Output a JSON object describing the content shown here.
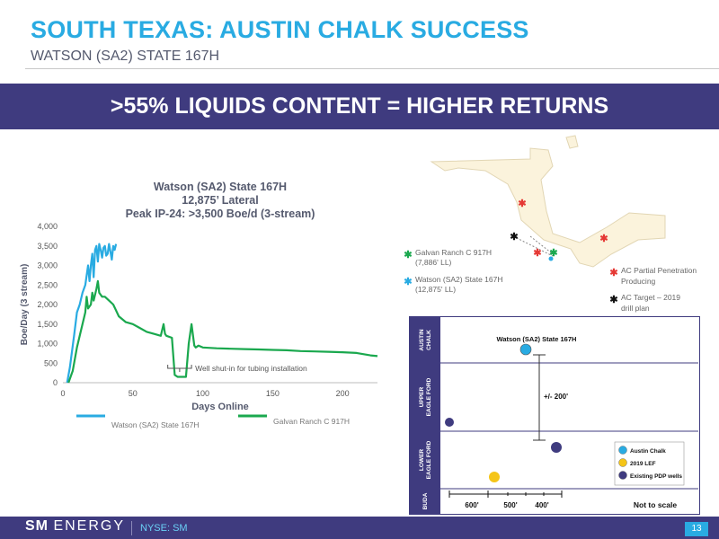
{
  "header": {
    "title": "SOUTH TEXAS: AUSTIN CHALK SUCCESS",
    "subtitle": "WATSON (SA2) STATE 167H"
  },
  "banner": {
    "text": ">55% LIQUIDS CONTENT = HIGHER RETURNS"
  },
  "chart_data": [
    {
      "type": "line",
      "title": [
        "Watson (SA2) State 167H",
        "12,875’ Lateral",
        "Peak IP-24: >3,500 Boe/d  (3-stream)"
      ],
      "xlabel": "Days Online",
      "ylabel": "Boe/Day (3 stream)",
      "xlim": [
        0,
        225
      ],
      "ylim": [
        0,
        4000
      ],
      "xticks": [
        0,
        50,
        100,
        150,
        200
      ],
      "yticks": [
        "0",
        "500",
        "1,000",
        "1,500",
        "2,000",
        "2,500",
        "3,000",
        "3,500",
        "4,000"
      ],
      "grid": false,
      "legend": "bottom",
      "series": [
        {
          "name": "Watson (SA2) State 167H",
          "color": "#29abe2",
          "x": [
            3,
            5,
            8,
            10,
            12,
            14,
            16,
            18,
            19,
            20,
            21,
            22,
            23,
            24,
            25,
            26,
            27,
            28,
            29,
            30,
            31,
            32,
            33,
            34,
            35,
            36,
            37,
            38
          ],
          "y": [
            0,
            400,
            1200,
            1800,
            2000,
            2300,
            2500,
            3000,
            2600,
            3000,
            3300,
            2700,
            3400,
            3500,
            3100,
            3550,
            3400,
            3200,
            3450,
            3500,
            3250,
            3300,
            3550,
            3350,
            3150,
            3500,
            3400,
            3550
          ]
        },
        {
          "name": "Galvan Ranch C 917H",
          "color": "#1aa84e",
          "x": [
            4,
            7,
            10,
            12,
            14,
            16,
            17,
            18,
            20,
            21,
            22,
            24,
            25,
            26,
            28,
            30,
            33,
            36,
            40,
            45,
            50,
            55,
            60,
            65,
            70,
            72,
            73,
            74,
            78,
            80,
            82,
            84,
            88,
            90,
            92,
            94,
            95,
            97,
            100,
            110,
            120,
            130,
            140,
            150,
            160,
            170,
            180,
            190,
            200,
            210,
            220,
            225
          ],
          "y": [
            0,
            300,
            900,
            1200,
            1500,
            1800,
            2200,
            1900,
            2000,
            2300,
            2100,
            2400,
            2600,
            2300,
            2200,
            2200,
            2100,
            2000,
            1700,
            1550,
            1500,
            1400,
            1300,
            1250,
            1200,
            1500,
            1250,
            1200,
            1150,
            200,
            150,
            150,
            150,
            1000,
            1500,
            950,
            900,
            950,
            900,
            880,
            870,
            860,
            850,
            840,
            830,
            810,
            800,
            790,
            780,
            760,
            700,
            680
          ]
        }
      ],
      "annotation": "Well shut-in for tubing installation"
    },
    {
      "type": "scatter",
      "zones": [
        "AUSTIN CHALK",
        "UPPER EAGLE FORD",
        "LOWER EAGLE FORD",
        "BUDA"
      ],
      "labels": {
        "well": "Watson (SA2) State 167H",
        "offset": "+/- 200'",
        "scale": "Not to scale"
      },
      "scale_ticks": [
        "600'",
        "500'",
        "400'"
      ],
      "legend": [
        {
          "name": "Austin Chalk",
          "color": "#29abe2"
        },
        {
          "name": "2019 LEF",
          "color": "#f5c518"
        },
        {
          "name": "Existing PDP wells",
          "color": "#3f3b7f"
        }
      ]
    }
  ],
  "map": {
    "legend_left": [
      {
        "label": "Galvan Ranch C 917H",
        "detail": "(7,886' LL)",
        "color": "#1aa84e"
      },
      {
        "label": "Watson (SA2) State 167H",
        "detail": "(12,875' LL)",
        "color": "#29abe2"
      }
    ],
    "legend_right": [
      {
        "label": "AC Partial Penetration",
        "detail": "Producing",
        "color": "#e53935"
      },
      {
        "label": "AC Target – 2019",
        "detail": "drill plan",
        "color": "#111111"
      }
    ]
  },
  "footer": {
    "logo_bold": "SM",
    "logo_thin": "ENERGY",
    "ticker": "NYSE: SM",
    "page": "13"
  }
}
